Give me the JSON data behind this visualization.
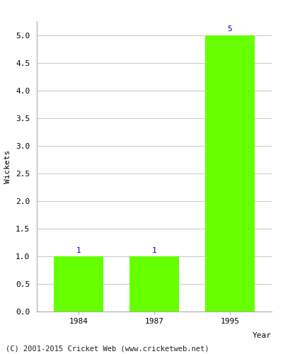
{
  "years": [
    "1984",
    "1987",
    "1995"
  ],
  "values": [
    1,
    1,
    5
  ],
  "bar_color": "#66ff00",
  "bar_edge_color": "#66ff00",
  "xlabel": "Year",
  "ylabel": "Wickets",
  "ylim": [
    0,
    5.25
  ],
  "yticks": [
    0.0,
    0.5,
    1.0,
    1.5,
    2.0,
    2.5,
    3.0,
    3.5,
    4.0,
    4.5,
    5.0
  ],
  "annotation_color": "#0000cc",
  "annotation_fontsize": 8,
  "axis_label_fontsize": 8,
  "tick_fontsize": 8,
  "footer_text": "(C) 2001-2015 Cricket Web (www.cricketweb.net)",
  "footer_fontsize": 7.5,
  "background_color": "#ffffff",
  "grid_color": "#cccccc",
  "spine_color": "#aaaaaa"
}
